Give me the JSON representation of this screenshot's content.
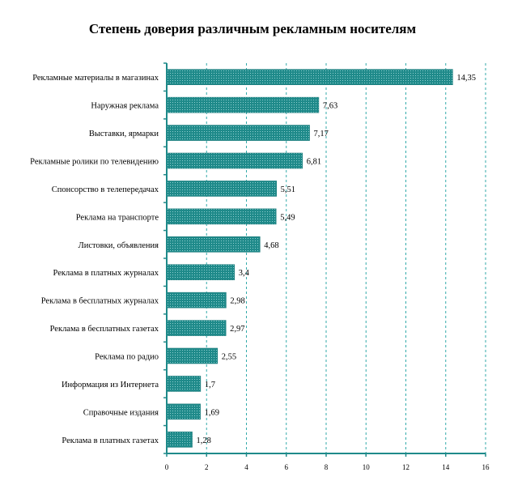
{
  "chart_data": {
    "type": "bar",
    "orientation": "horizontal",
    "title": "Степень доверия различным рекламным носителям",
    "xlabel": "",
    "ylabel": "",
    "xlim": [
      0,
      16
    ],
    "x_ticks": [
      0,
      2,
      4,
      6,
      8,
      10,
      12,
      14,
      16
    ],
    "grid": "vertical dashed",
    "bar_color": "#1f8a8a",
    "categories": [
      "Рекламные материалы в магазинах",
      "Наружная реклама",
      "Выставки, ярмарки",
      "Рекламные ролики по телевидению",
      "Спонсорство в телепередачах",
      "Реклама на транспорте",
      "Листовки, объявления",
      "Реклама в платных журналах",
      "Реклама в бесплатных журналах",
      "Реклама в бесплатных газетах",
      "Реклама по радио",
      "Информация из Интернета",
      "Справочные издания",
      "Реклама в платных газетах"
    ],
    "values": [
      14.35,
      7.63,
      7.17,
      6.81,
      5.51,
      5.49,
      4.68,
      3.4,
      2.98,
      2.97,
      2.55,
      1.7,
      1.69,
      1.28
    ],
    "value_labels": [
      "14,35",
      "7,63",
      "7,17",
      "6,81",
      "5,51",
      "5,49",
      "4,68",
      "3,4",
      "2,98",
      "2,97",
      "2,55",
      "1,7",
      "1,69",
      "1,28"
    ]
  }
}
